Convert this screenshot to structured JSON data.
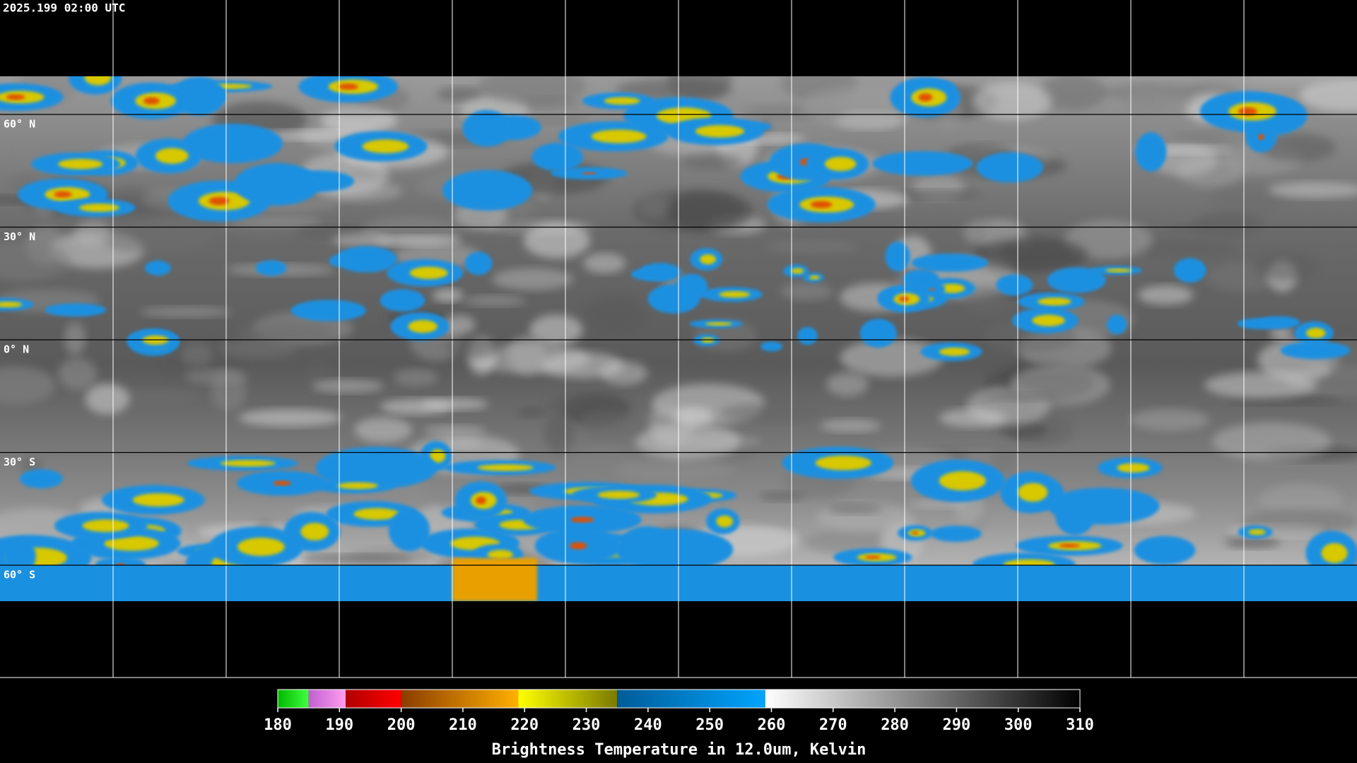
{
  "map": {
    "timestamp": "2025.199 02:00 UTC",
    "lat_labels": [
      "60° N",
      "30° N",
      "0° N",
      "30° S",
      "60° S"
    ]
  },
  "colorbar": {
    "title": "Brightness Temperature in 12.0um, Kelvin",
    "lim": [
      180,
      310
    ],
    "ticks": [
      180,
      190,
      200,
      210,
      220,
      230,
      240,
      250,
      260,
      270,
      280,
      290,
      300,
      310
    ],
    "segments": [
      {
        "from": 180,
        "to": 185,
        "colors": [
          "#00b800",
          "#40ff40"
        ]
      },
      {
        "from": 185,
        "to": 191,
        "colors": [
          "#c060d0",
          "#ff9cf0"
        ]
      },
      {
        "from": 191,
        "to": 200,
        "colors": [
          "#b00000",
          "#ff0000"
        ]
      },
      {
        "from": 200,
        "to": 219,
        "colors": [
          "#8a3c00",
          "#ffb000"
        ]
      },
      {
        "from": 219,
        "to": 235,
        "colors": [
          "#ffff00",
          "#7a7a00"
        ]
      },
      {
        "from": 235,
        "to": 259,
        "colors": [
          "#005c98",
          "#00a4ff"
        ]
      },
      {
        "from": 259,
        "to": 310,
        "colors": [
          "#ffffff",
          "#000000"
        ]
      }
    ]
  }
}
